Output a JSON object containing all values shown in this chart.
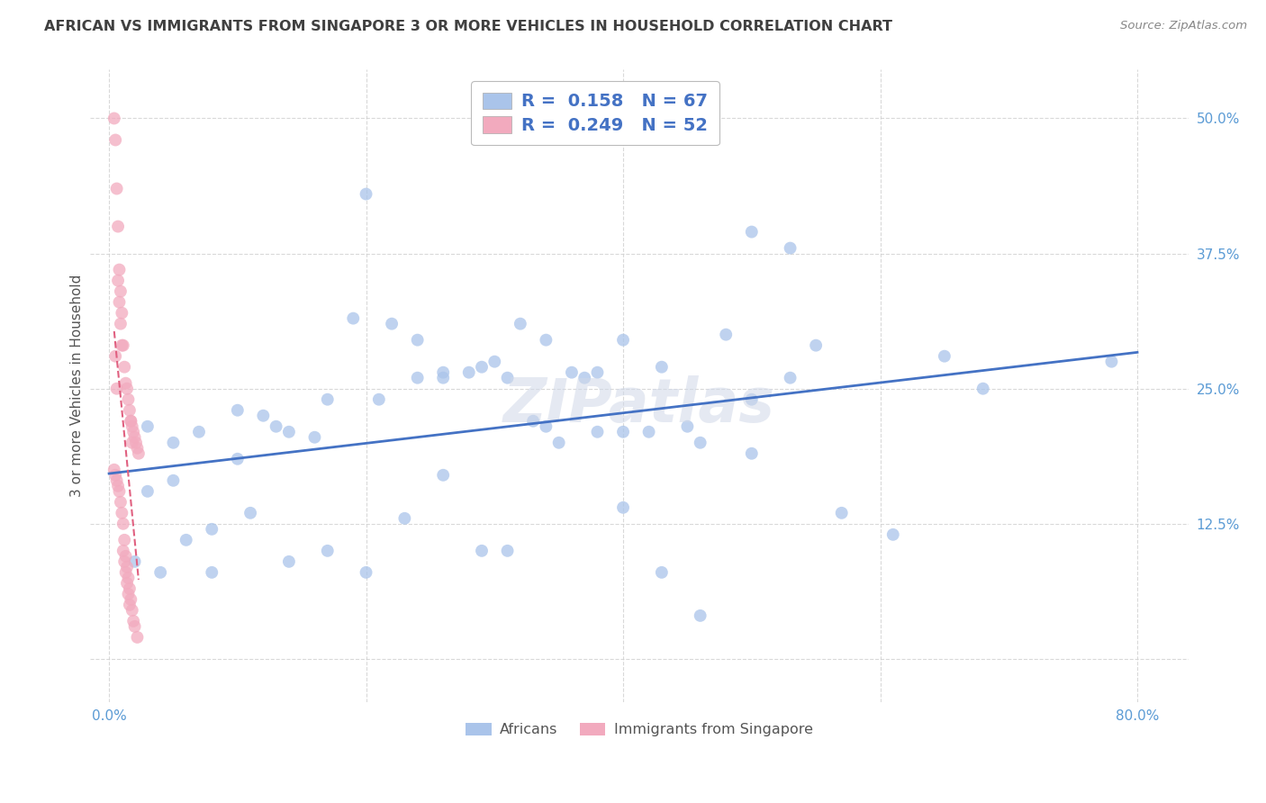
{
  "title": "AFRICAN VS IMMIGRANTS FROM SINGAPORE 3 OR MORE VEHICLES IN HOUSEHOLD CORRELATION CHART",
  "source": "Source: ZipAtlas.com",
  "xlabel_ticks": [
    "0.0%",
    "",
    "",
    "",
    "80.0%"
  ],
  "ylabel_ticks": [
    "",
    "12.5%",
    "25.0%",
    "37.5%",
    "50.0%"
  ],
  "xlabel_vals": [
    0.0,
    0.2,
    0.4,
    0.6,
    0.8
  ],
  "ylabel_vals": [
    0.0,
    0.125,
    0.25,
    0.375,
    0.5
  ],
  "xlim": [
    -0.015,
    0.84
  ],
  "ylim": [
    -0.04,
    0.545
  ],
  "ylabel": "3 or more Vehicles in Household",
  "legend_labels": [
    "Africans",
    "Immigrants from Singapore"
  ],
  "R_african": 0.158,
  "N_african": 67,
  "R_singapore": 0.249,
  "N_singapore": 52,
  "blue_color": "#aac4ea",
  "pink_color": "#f2aabe",
  "blue_line_color": "#4472c4",
  "pink_line_color": "#e06080",
  "title_color": "#404040",
  "axis_tick_color": "#5b9bd5",
  "legend_R_color": "#4472c4",
  "marker_size": 100,
  "african_x": [
    0.03,
    0.05,
    0.07,
    0.1,
    0.13,
    0.16,
    0.2,
    0.22,
    0.24,
    0.26,
    0.28,
    0.3,
    0.32,
    0.34,
    0.36,
    0.38,
    0.4,
    0.42,
    0.45,
    0.48,
    0.5,
    0.53,
    0.55,
    0.68,
    0.78,
    0.03,
    0.05,
    0.08,
    0.1,
    0.12,
    0.14,
    0.17,
    0.19,
    0.21,
    0.24,
    0.26,
    0.29,
    0.31,
    0.33,
    0.35,
    0.38,
    0.4,
    0.43,
    0.46,
    0.5,
    0.02,
    0.04,
    0.06,
    0.08,
    0.11,
    0.14,
    0.17,
    0.2,
    0.23,
    0.26,
    0.29,
    0.31,
    0.34,
    0.37,
    0.4,
    0.43,
    0.46,
    0.5,
    0.53,
    0.57,
    0.61,
    0.65
  ],
  "african_y": [
    0.215,
    0.2,
    0.21,
    0.185,
    0.215,
    0.205,
    0.43,
    0.31,
    0.295,
    0.265,
    0.265,
    0.275,
    0.31,
    0.215,
    0.265,
    0.265,
    0.295,
    0.21,
    0.215,
    0.3,
    0.24,
    0.38,
    0.29,
    0.25,
    0.275,
    0.155,
    0.165,
    0.12,
    0.23,
    0.225,
    0.21,
    0.24,
    0.315,
    0.24,
    0.26,
    0.26,
    0.27,
    0.26,
    0.22,
    0.2,
    0.21,
    0.21,
    0.27,
    0.2,
    0.19,
    0.09,
    0.08,
    0.11,
    0.08,
    0.135,
    0.09,
    0.1,
    0.08,
    0.13,
    0.17,
    0.1,
    0.1,
    0.295,
    0.26,
    0.14,
    0.08,
    0.04,
    0.395,
    0.26,
    0.135,
    0.115,
    0.28
  ],
  "singapore_x": [
    0.004,
    0.005,
    0.006,
    0.007,
    0.008,
    0.009,
    0.01,
    0.011,
    0.012,
    0.013,
    0.014,
    0.015,
    0.016,
    0.017,
    0.018,
    0.019,
    0.02,
    0.021,
    0.022,
    0.023,
    0.004,
    0.005,
    0.006,
    0.007,
    0.008,
    0.009,
    0.01,
    0.011,
    0.012,
    0.013,
    0.014,
    0.015,
    0.016,
    0.017,
    0.018,
    0.019,
    0.005,
    0.006,
    0.007,
    0.008,
    0.009,
    0.01,
    0.011,
    0.012,
    0.013,
    0.014,
    0.015,
    0.016,
    0.017,
    0.018,
    0.02,
    0.022
  ],
  "singapore_y": [
    0.5,
    0.48,
    0.435,
    0.4,
    0.36,
    0.34,
    0.32,
    0.29,
    0.27,
    0.255,
    0.25,
    0.24,
    0.23,
    0.22,
    0.215,
    0.21,
    0.205,
    0.2,
    0.195,
    0.19,
    0.175,
    0.17,
    0.165,
    0.16,
    0.155,
    0.145,
    0.135,
    0.125,
    0.11,
    0.095,
    0.085,
    0.075,
    0.065,
    0.055,
    0.045,
    0.035,
    0.28,
    0.25,
    0.35,
    0.33,
    0.31,
    0.29,
    0.1,
    0.09,
    0.08,
    0.07,
    0.06,
    0.05,
    0.22,
    0.2,
    0.03,
    0.02
  ]
}
